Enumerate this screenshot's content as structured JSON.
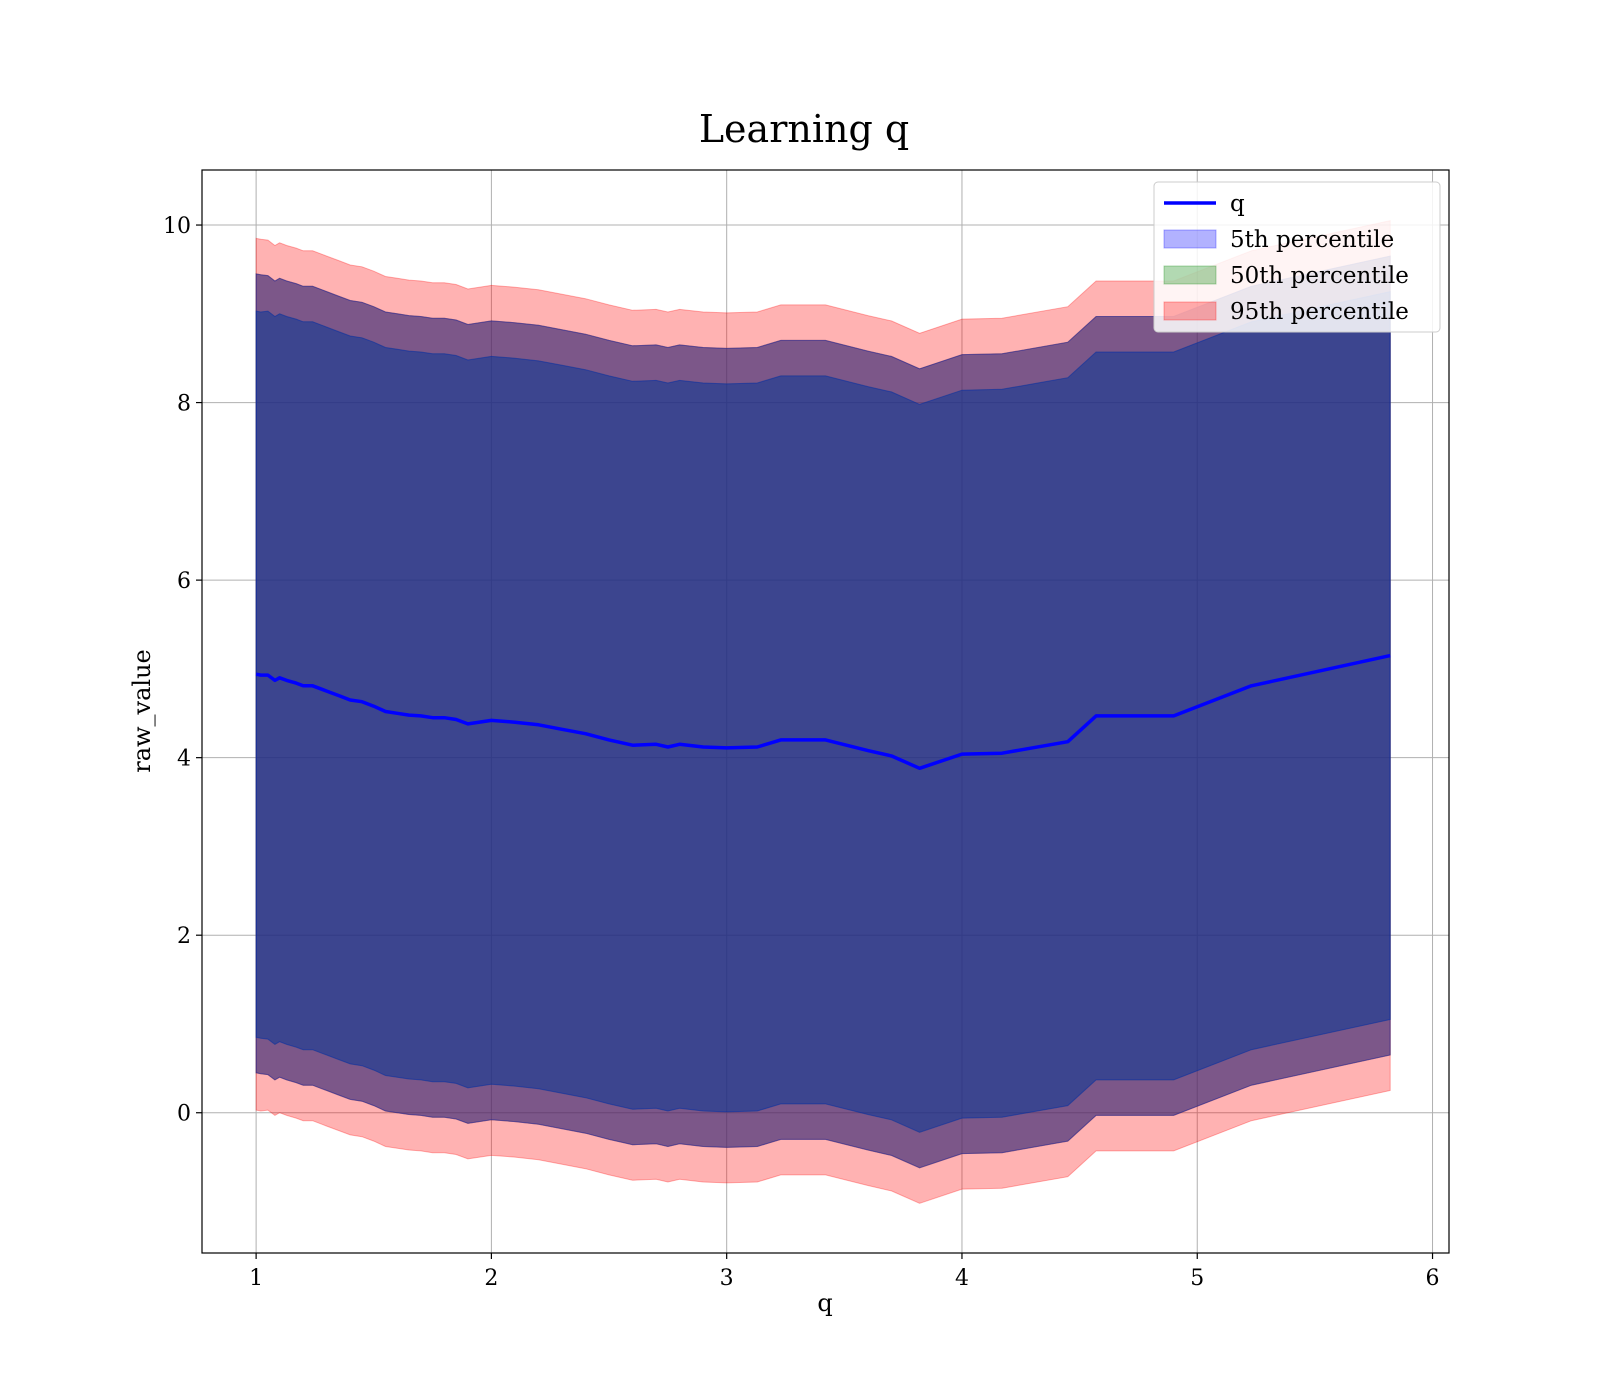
{
  "chart_data": {
    "type": "area",
    "title": "Learning q",
    "xlabel": "q",
    "ylabel": "raw_value",
    "xlim": [
      0.77,
      6.07
    ],
    "ylim": [
      -1.58,
      10.62
    ],
    "xticks": [
      1,
      2,
      3,
      4,
      5,
      6
    ],
    "yticks": [
      0,
      2,
      4,
      6,
      8,
      10
    ],
    "grid": true,
    "legend_position": "top-right",
    "x": [
      1.0,
      1.02,
      1.05,
      1.08,
      1.1,
      1.13,
      1.17,
      1.2,
      1.24,
      1.28,
      1.3,
      1.35,
      1.4,
      1.45,
      1.5,
      1.55,
      1.6,
      1.65,
      1.7,
      1.75,
      1.8,
      1.85,
      1.9,
      2.0,
      2.1,
      2.2,
      2.3,
      2.4,
      2.5,
      2.6,
      2.7,
      2.75,
      2.8,
      2.9,
      3.0,
      3.13,
      3.23,
      3.42,
      3.6,
      3.7,
      3.82,
      4.0,
      4.17,
      4.45,
      4.57,
      4.9,
      5.23,
      5.82
    ],
    "series": [
      {
        "name": "q",
        "kind": "line",
        "color": "#0000ff",
        "values": [
          4.94,
          4.93,
          4.93,
          4.87,
          4.9,
          4.87,
          4.84,
          4.81,
          4.81,
          4.77,
          4.75,
          4.7,
          4.65,
          4.63,
          4.58,
          4.52,
          4.5,
          4.48,
          4.47,
          4.45,
          4.45,
          4.43,
          4.38,
          4.42,
          4.4,
          4.37,
          4.32,
          4.27,
          4.2,
          4.14,
          4.15,
          4.12,
          4.15,
          4.12,
          4.11,
          4.12,
          4.2,
          4.2,
          4.08,
          4.02,
          3.88,
          4.04,
          4.05,
          4.18,
          4.47,
          4.47,
          4.81,
          5.15
        ]
      },
      {
        "name": "5th percentile",
        "kind": "band",
        "color": "#0000ff",
        "lower": [
          0.85,
          0.84,
          0.83,
          0.77,
          0.8,
          0.77,
          0.74,
          0.71,
          0.71,
          0.67,
          0.65,
          0.6,
          0.55,
          0.53,
          0.48,
          0.42,
          0.4,
          0.38,
          0.37,
          0.35,
          0.35,
          0.33,
          0.28,
          0.32,
          0.3,
          0.27,
          0.22,
          0.17,
          0.1,
          0.04,
          0.05,
          0.02,
          0.05,
          0.02,
          0.01,
          0.02,
          0.1,
          0.1,
          -0.02,
          -0.08,
          -0.22,
          -0.06,
          -0.05,
          0.08,
          0.37,
          0.37,
          0.71,
          1.05
        ],
        "upper": [
          9.03,
          9.02,
          9.03,
          8.97,
          9.0,
          8.97,
          8.94,
          8.91,
          8.91,
          8.87,
          8.85,
          8.8,
          8.75,
          8.73,
          8.68,
          8.62,
          8.6,
          8.58,
          8.57,
          8.55,
          8.55,
          8.53,
          8.48,
          8.52,
          8.5,
          8.47,
          8.42,
          8.37,
          8.3,
          8.24,
          8.25,
          8.22,
          8.25,
          8.22,
          8.21,
          8.22,
          8.3,
          8.3,
          8.18,
          8.12,
          7.98,
          8.14,
          8.15,
          8.28,
          8.57,
          8.57,
          8.91,
          9.25
        ]
      },
      {
        "name": "50th percentile",
        "kind": "band",
        "color": "#008000",
        "lower": [
          0.85,
          0.84,
          0.83,
          0.77,
          0.8,
          0.77,
          0.74,
          0.71,
          0.71,
          0.67,
          0.65,
          0.6,
          0.55,
          0.53,
          0.48,
          0.42,
          0.4,
          0.38,
          0.37,
          0.35,
          0.35,
          0.33,
          0.28,
          0.32,
          0.3,
          0.27,
          0.22,
          0.17,
          0.1,
          0.04,
          0.05,
          0.02,
          0.05,
          0.02,
          0.01,
          0.02,
          0.1,
          0.1,
          -0.02,
          -0.08,
          -0.22,
          -0.06,
          -0.05,
          0.08,
          0.37,
          0.37,
          0.71,
          1.05
        ],
        "upper": [
          9.03,
          9.02,
          9.03,
          8.97,
          9.0,
          8.97,
          8.94,
          8.91,
          8.91,
          8.87,
          8.85,
          8.8,
          8.75,
          8.73,
          8.68,
          8.62,
          8.6,
          8.58,
          8.57,
          8.55,
          8.55,
          8.53,
          8.48,
          8.52,
          8.5,
          8.47,
          8.42,
          8.37,
          8.3,
          8.24,
          8.25,
          8.22,
          8.25,
          8.22,
          8.21,
          8.22,
          8.3,
          8.3,
          8.18,
          8.12,
          7.98,
          8.14,
          8.15,
          8.28,
          8.57,
          8.57,
          8.91,
          9.25
        ]
      },
      {
        "name": "95th percentile",
        "kind": "band",
        "color": "#ff0000",
        "lower": [
          0.03,
          0.02,
          0.03,
          -0.03,
          0.0,
          -0.03,
          -0.06,
          -0.09,
          -0.09,
          -0.13,
          -0.15,
          -0.2,
          -0.25,
          -0.27,
          -0.32,
          -0.38,
          -0.4,
          -0.42,
          -0.43,
          -0.45,
          -0.45,
          -0.47,
          -0.52,
          -0.48,
          -0.5,
          -0.53,
          -0.58,
          -0.63,
          -0.7,
          -0.76,
          -0.75,
          -0.78,
          -0.75,
          -0.78,
          -0.79,
          -0.78,
          -0.7,
          -0.7,
          -0.82,
          -0.88,
          -1.02,
          -0.86,
          -0.85,
          -0.72,
          -0.43,
          -0.43,
          -0.09,
          0.25
        ],
        "upper": [
          9.85,
          9.84,
          9.83,
          9.77,
          9.8,
          9.77,
          9.74,
          9.71,
          9.71,
          9.67,
          9.65,
          9.6,
          9.55,
          9.53,
          9.48,
          9.42,
          9.4,
          9.38,
          9.37,
          9.35,
          9.35,
          9.33,
          9.28,
          9.32,
          9.3,
          9.27,
          9.22,
          9.17,
          9.1,
          9.04,
          9.05,
          9.02,
          9.05,
          9.02,
          9.01,
          9.02,
          9.1,
          9.1,
          8.98,
          8.92,
          8.78,
          8.94,
          8.95,
          9.08,
          9.37,
          9.37,
          9.71,
          10.05
        ]
      }
    ],
    "extra_bands": [
      {
        "color": "#ff0000",
        "lower": [
          0.45,
          0.44,
          0.43,
          0.37,
          0.4,
          0.37,
          0.34,
          0.31,
          0.31,
          0.27,
          0.25,
          0.2,
          0.15,
          0.13,
          0.08,
          0.02,
          0.0,
          -0.02,
          -0.03,
          -0.05,
          -0.05,
          -0.07,
          -0.12,
          -0.08,
          -0.1,
          -0.13,
          -0.18,
          -0.23,
          -0.3,
          -0.36,
          -0.35,
          -0.38,
          -0.35,
          -0.38,
          -0.39,
          -0.38,
          -0.3,
          -0.3,
          -0.42,
          -0.48,
          -0.62,
          -0.46,
          -0.45,
          -0.32,
          -0.03,
          -0.03,
          0.31,
          0.65
        ],
        "upper": [
          9.45,
          9.44,
          9.43,
          9.37,
          9.4,
          9.37,
          9.34,
          9.31,
          9.31,
          9.27,
          9.25,
          9.2,
          9.15,
          9.13,
          9.08,
          9.02,
          9.0,
          8.98,
          8.97,
          8.95,
          8.95,
          8.93,
          8.88,
          8.92,
          8.9,
          8.87,
          8.82,
          8.77,
          8.7,
          8.64,
          8.65,
          8.62,
          8.65,
          8.62,
          8.61,
          8.62,
          8.7,
          8.7,
          8.58,
          8.52,
          8.38,
          8.54,
          8.55,
          8.68,
          8.97,
          8.97,
          9.31,
          9.65
        ]
      },
      {
        "color": "#008000",
        "lower": [
          0.45,
          0.44,
          0.43,
          0.37,
          0.4,
          0.37,
          0.34,
          0.31,
          0.31,
          0.27,
          0.25,
          0.2,
          0.15,
          0.13,
          0.08,
          0.02,
          0.0,
          -0.02,
          -0.03,
          -0.05,
          -0.05,
          -0.07,
          -0.12,
          -0.08,
          -0.1,
          -0.13,
          -0.18,
          -0.23,
          -0.3,
          -0.36,
          -0.35,
          -0.38,
          -0.35,
          -0.38,
          -0.39,
          -0.38,
          -0.3,
          -0.3,
          -0.42,
          -0.48,
          -0.62,
          -0.46,
          -0.45,
          -0.32,
          -0.03,
          -0.03,
          0.31,
          0.65
        ],
        "upper": [
          9.45,
          9.44,
          9.43,
          9.37,
          9.4,
          9.37,
          9.34,
          9.31,
          9.31,
          9.27,
          9.25,
          9.2,
          9.15,
          9.13,
          9.08,
          9.02,
          9.0,
          8.98,
          8.97,
          8.95,
          8.95,
          8.93,
          8.88,
          8.92,
          8.9,
          8.87,
          8.82,
          8.77,
          8.7,
          8.64,
          8.65,
          8.62,
          8.65,
          8.62,
          8.61,
          8.62,
          8.7,
          8.7,
          8.58,
          8.52,
          8.38,
          8.54,
          8.55,
          8.68,
          8.97,
          8.97,
          9.31,
          9.65
        ]
      },
      {
        "color": "#0000ff",
        "lower": [
          0.45,
          0.44,
          0.43,
          0.37,
          0.4,
          0.37,
          0.34,
          0.31,
          0.31,
          0.27,
          0.25,
          0.2,
          0.15,
          0.13,
          0.08,
          0.02,
          0.0,
          -0.02,
          -0.03,
          -0.05,
          -0.05,
          -0.07,
          -0.12,
          -0.08,
          -0.1,
          -0.13,
          -0.18,
          -0.23,
          -0.3,
          -0.36,
          -0.35,
          -0.38,
          -0.35,
          -0.38,
          -0.39,
          -0.38,
          -0.3,
          -0.3,
          -0.42,
          -0.48,
          -0.62,
          -0.46,
          -0.45,
          -0.32,
          -0.03,
          -0.03,
          0.31,
          0.65
        ],
        "upper": [
          9.45,
          9.44,
          9.43,
          9.37,
          9.4,
          9.37,
          9.34,
          9.31,
          9.31,
          9.27,
          9.25,
          9.2,
          9.15,
          9.13,
          9.08,
          9.02,
          9.0,
          8.98,
          8.97,
          8.95,
          8.95,
          8.93,
          8.88,
          8.92,
          8.9,
          8.87,
          8.82,
          8.77,
          8.7,
          8.64,
          8.65,
          8.62,
          8.65,
          8.62,
          8.61,
          8.62,
          8.7,
          8.7,
          8.58,
          8.52,
          8.38,
          8.54,
          8.55,
          8.68,
          8.97,
          8.97,
          9.31,
          9.65
        ]
      }
    ]
  }
}
